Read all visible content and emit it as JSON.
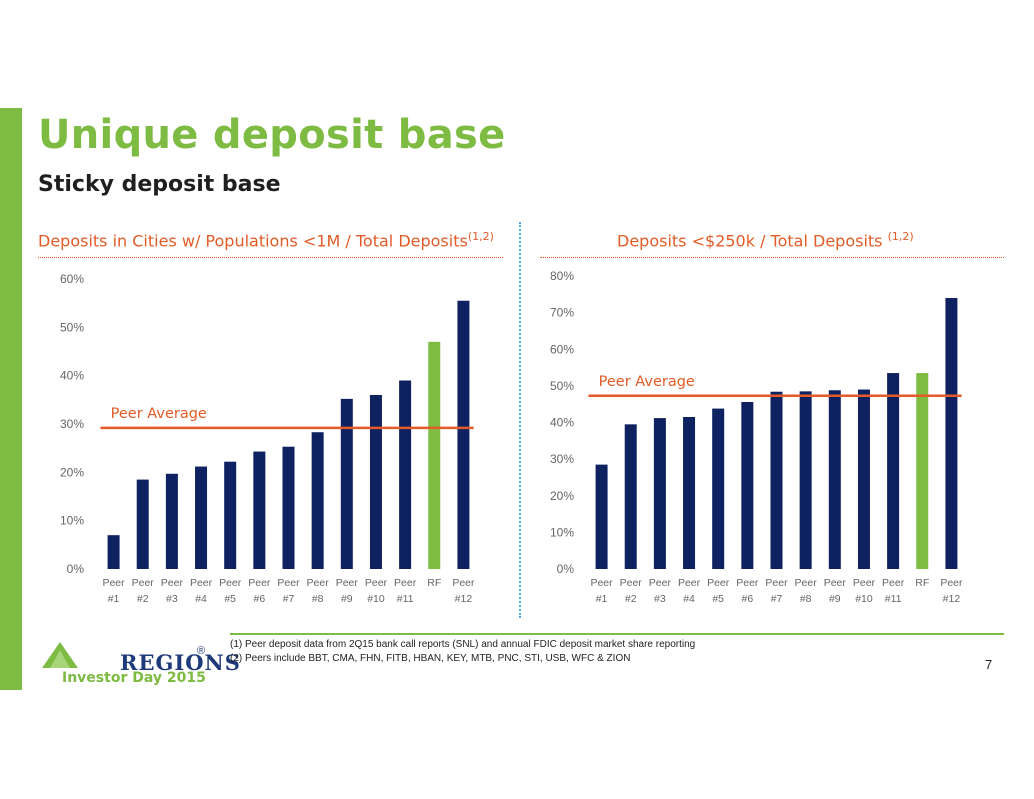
{
  "header": {
    "title": "Unique deposit base",
    "subtitle": "Sticky deposit base"
  },
  "chart_data": [
    {
      "type": "bar",
      "title": "Deposits in Cities w/ Populations <1M / Total Deposits",
      "title_sup": "(1,2)",
      "categories": [
        "Peer #1",
        "Peer #2",
        "Peer #3",
        "Peer #4",
        "Peer #5",
        "Peer #6",
        "Peer #7",
        "Peer #8",
        "Peer #9",
        "Peer #10",
        "Peer #11",
        "RF",
        "Peer #12"
      ],
      "values": [
        7,
        18.5,
        19.7,
        21.2,
        22.2,
        24.3,
        25.3,
        28.3,
        35.2,
        36,
        39,
        47,
        55.5
      ],
      "highlight_index": 11,
      "reference_line": {
        "label": "Peer Average",
        "value": 29.2
      },
      "ylim": [
        0,
        60
      ],
      "yticks": [
        "0%",
        "10%",
        "20%",
        "30%",
        "40%",
        "50%",
        "60%"
      ],
      "ytick_values": [
        0,
        10,
        20,
        30,
        40,
        50,
        60
      ]
    },
    {
      "type": "bar",
      "title": "Deposits <$250k / Total Deposits",
      "title_sup": "(1,2)",
      "categories": [
        "Peer #1",
        "Peer #2",
        "Peer #3",
        "Peer #4",
        "Peer #5",
        "Peer #6",
        "Peer #7",
        "Peer #8",
        "Peer #9",
        "Peer #10",
        "Peer #11",
        "RF",
        "Peer #12"
      ],
      "values": [
        28.5,
        39.5,
        41.2,
        41.5,
        43.8,
        45.6,
        48.4,
        48.5,
        48.8,
        49,
        53.5,
        53.5,
        74
      ],
      "highlight_index": 11,
      "reference_line": {
        "label": "Peer Average",
        "value": 47.3
      },
      "ylim": [
        0,
        80
      ],
      "yticks": [
        "0%",
        "10%",
        "20%",
        "30%",
        "40%",
        "50%",
        "60%",
        "70%",
        "80%"
      ],
      "ytick_values": [
        0,
        10,
        20,
        30,
        40,
        50,
        60,
        70,
        80
      ]
    }
  ],
  "footnotes": [
    "(1)   Peer deposit data from 2Q15 bank call reports (SNL) and annual FDIC deposit market share reporting",
    "(2)   Peers include BBT, CMA, FHN, FITB, HBAN, KEY, MTB, PNC, STI, USB, WFC & ZION"
  ],
  "footer": {
    "logo_text": "REGIONS",
    "registered": "®",
    "event": "Investor Day 2015",
    "page_number": "7"
  },
  "colors": {
    "bar": "#0e2160",
    "highlight": "#7dbb42",
    "average_line": "#e35b26",
    "brand_green": "#7dbb42"
  }
}
